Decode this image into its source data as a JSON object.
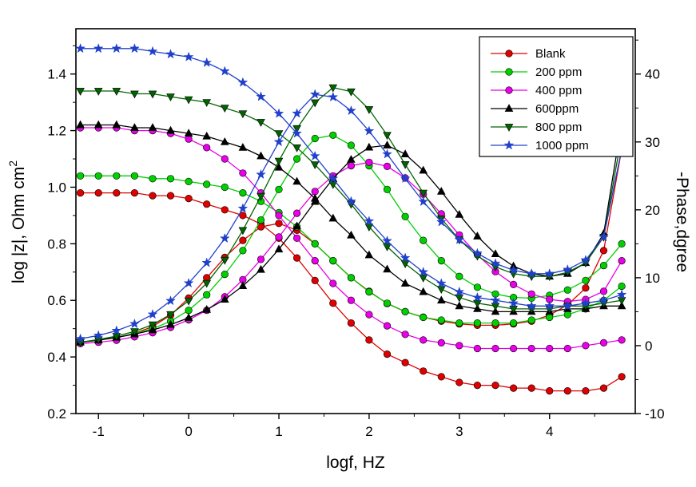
{
  "chart_data": {
    "type": "line",
    "title": "",
    "xlabel": "logf, HZ",
    "ylabel_left": "log |z|, Ohm cm",
    "ylabel_left_sup": "2",
    "ylabel_right": "-Phase,dgree",
    "xlim": [
      -1.25,
      4.95
    ],
    "ylim_left": [
      0.2,
      1.56
    ],
    "ylim_right": [
      -10,
      46.67
    ],
    "xticks": [
      "-1",
      "0",
      "1",
      "2",
      "3",
      "4"
    ],
    "yticks_left": [
      "0.2",
      "0.4",
      "0.6",
      "0.8",
      "1.0",
      "1.2",
      "1.4"
    ],
    "yticks_right": [
      "-10",
      "0",
      "10",
      "20",
      "30",
      "40"
    ],
    "grid": false,
    "legend_position": "top-right",
    "x": [
      -1.2,
      -1.0,
      -0.8,
      -0.6,
      -0.4,
      -0.2,
      0.0,
      0.2,
      0.4,
      0.6,
      0.8,
      1.0,
      1.2,
      1.4,
      1.6,
      1.8,
      2.0,
      2.2,
      2.4,
      2.6,
      2.8,
      3.0,
      3.2,
      3.4,
      3.6,
      3.8,
      4.0,
      4.2,
      4.4,
      4.6,
      4.8
    ],
    "series": [
      {
        "name": "Blank",
        "color": "#e00000",
        "marker": "circle",
        "log_z": [
          0.98,
          0.98,
          0.98,
          0.98,
          0.97,
          0.97,
          0.96,
          0.94,
          0.92,
          0.9,
          0.87,
          0.82,
          0.75,
          0.67,
          0.59,
          0.52,
          0.46,
          0.41,
          0.38,
          0.35,
          0.33,
          0.31,
          0.3,
          0.3,
          0.29,
          0.29,
          0.28,
          0.28,
          0.28,
          0.29,
          0.33
        ],
        "phase_deg": [
          0.5,
          0.8,
          1.2,
          1.8,
          2.8,
          4.5,
          7.0,
          10.0,
          13.0,
          15.5,
          17.5,
          18.0,
          17.0,
          15.0,
          12.5,
          10.0,
          8.0,
          6.2,
          5.0,
          4.2,
          3.6,
          3.2,
          3.0,
          3.0,
          3.2,
          3.6,
          4.5,
          6.0,
          8.5,
          14.0,
          29.0
        ]
      },
      {
        "name": "200 ppm",
        "color": "#00d000",
        "marker": "circle",
        "log_z": [
          1.04,
          1.04,
          1.04,
          1.04,
          1.03,
          1.03,
          1.02,
          1.01,
          1.0,
          0.98,
          0.95,
          0.91,
          0.86,
          0.8,
          0.74,
          0.68,
          0.63,
          0.59,
          0.56,
          0.54,
          0.53,
          0.52,
          0.52,
          0.52,
          0.52,
          0.53,
          0.54,
          0.55,
          0.57,
          0.6,
          0.65
        ],
        "phase_deg": [
          0.5,
          0.8,
          1.2,
          1.8,
          2.5,
          3.6,
          5.2,
          7.5,
          10.5,
          14.0,
          18.5,
          23.0,
          27.5,
          30.5,
          31.0,
          29.5,
          26.5,
          23.0,
          19.0,
          15.5,
          12.5,
          10.2,
          8.6,
          7.6,
          7.1,
          7.0,
          7.4,
          8.2,
          9.6,
          11.8,
          15.0
        ]
      },
      {
        "name": "400 ppm",
        "color": "#e800e8",
        "marker": "circle",
        "log_z": [
          1.21,
          1.21,
          1.21,
          1.2,
          1.2,
          1.19,
          1.17,
          1.14,
          1.1,
          1.05,
          0.98,
          0.9,
          0.82,
          0.74,
          0.66,
          0.6,
          0.55,
          0.51,
          0.48,
          0.46,
          0.45,
          0.44,
          0.43,
          0.43,
          0.43,
          0.43,
          0.43,
          0.43,
          0.44,
          0.45,
          0.46
        ],
        "phase_deg": [
          0.3,
          0.5,
          0.8,
          1.3,
          1.9,
          2.7,
          3.8,
          5.2,
          7.2,
          9.7,
          12.7,
          16.0,
          19.5,
          22.7,
          25.0,
          26.5,
          27.0,
          26.4,
          24.7,
          22.3,
          19.4,
          16.3,
          13.4,
          10.9,
          9.0,
          7.6,
          6.8,
          6.5,
          6.8,
          8.0,
          12.5
        ]
      },
      {
        "name": "600ppm",
        "color": "#000000",
        "marker": "triangle-up",
        "log_z": [
          1.22,
          1.22,
          1.22,
          1.21,
          1.21,
          1.2,
          1.19,
          1.18,
          1.16,
          1.14,
          1.11,
          1.07,
          1.02,
          0.96,
          0.89,
          0.83,
          0.76,
          0.71,
          0.66,
          0.63,
          0.6,
          0.58,
          0.57,
          0.56,
          0.56,
          0.56,
          0.56,
          0.57,
          0.57,
          0.58,
          0.58
        ],
        "phase_deg": [
          0.5,
          0.8,
          1.2,
          1.7,
          2.3,
          3.1,
          4.1,
          5.3,
          6.8,
          8.8,
          11.2,
          14.2,
          17.6,
          21.2,
          24.6,
          27.4,
          29.2,
          29.5,
          28.2,
          25.8,
          22.7,
          19.3,
          16.1,
          13.5,
          11.7,
          10.6,
          10.2,
          10.6,
          12.2,
          16.5,
          33.0
        ]
      },
      {
        "name": "800 ppm",
        "color": "#006400",
        "marker": "triangle-down",
        "log_z": [
          1.34,
          1.34,
          1.34,
          1.33,
          1.33,
          1.32,
          1.31,
          1.3,
          1.28,
          1.26,
          1.23,
          1.19,
          1.14,
          1.08,
          1.01,
          0.94,
          0.86,
          0.79,
          0.73,
          0.68,
          0.64,
          0.61,
          0.59,
          0.58,
          0.57,
          0.57,
          0.57,
          0.58,
          0.58,
          0.59,
          0.6
        ],
        "phase_deg": [
          0.5,
          0.9,
          1.4,
          2.1,
          3.1,
          4.6,
          6.6,
          9.2,
          12.6,
          17.0,
          22.0,
          27.2,
          32.0,
          35.8,
          38.0,
          37.4,
          34.8,
          31.0,
          26.7,
          22.5,
          18.7,
          15.6,
          13.2,
          11.6,
          10.6,
          10.2,
          10.2,
          10.8,
          12.2,
          16.0,
          31.0
        ]
      },
      {
        "name": "1000 ppm",
        "color": "#2040cc",
        "marker": "star",
        "log_z": [
          1.49,
          1.49,
          1.49,
          1.49,
          1.48,
          1.47,
          1.46,
          1.44,
          1.41,
          1.37,
          1.32,
          1.26,
          1.19,
          1.11,
          1.03,
          0.95,
          0.88,
          0.81,
          0.75,
          0.7,
          0.66,
          0.63,
          0.61,
          0.6,
          0.59,
          0.58,
          0.58,
          0.58,
          0.59,
          0.6,
          0.62
        ],
        "phase_deg": [
          1.0,
          1.5,
          2.2,
          3.2,
          4.6,
          6.6,
          9.2,
          12.2,
          15.8,
          20.2,
          25.2,
          30.0,
          34.2,
          37.0,
          36.6,
          34.6,
          31.6,
          28.2,
          24.6,
          21.2,
          18.2,
          15.6,
          13.6,
          12.1,
          11.1,
          10.6,
          10.6,
          11.2,
          12.6,
          16.0,
          29.0
        ]
      }
    ]
  }
}
